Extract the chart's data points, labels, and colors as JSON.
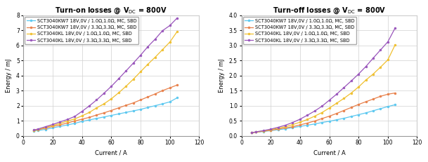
{
  "title_on": "Turn-on losses @ V$_\\mathrm{DC}$ = 800V",
  "title_off": "Turn-off losses @ V$_\\mathrm{DC}$ = 800V",
  "xlabel": "Current / A",
  "ylabel": "Energy / mJ",
  "xlim": [
    0,
    120
  ],
  "ylim_on": [
    0,
    8
  ],
  "ylim_off": [
    0,
    4
  ],
  "xticks": [
    0,
    20,
    40,
    60,
    80,
    100,
    120
  ],
  "yticks_on": [
    0,
    1,
    2,
    3,
    4,
    5,
    6,
    7,
    8
  ],
  "yticks_off": [
    0.0,
    0.5,
    1.0,
    1.5,
    2.0,
    2.5,
    3.0,
    3.5,
    4.0
  ],
  "current": [
    7,
    10,
    15,
    20,
    25,
    30,
    35,
    40,
    45,
    50,
    55,
    60,
    65,
    70,
    75,
    80,
    85,
    90,
    95,
    100,
    105
  ],
  "series": [
    {
      "label": "SCT3040KW7 18V,0V / 1.0Ω,1.0Ω, MC, SBD",
      "color": "#5bc8f0",
      "on": [
        0.32,
        0.35,
        0.42,
        0.52,
        0.62,
        0.72,
        0.82,
        0.95,
        1.05,
        1.15,
        1.25,
        1.35,
        1.45,
        1.55,
        1.65,
        1.75,
        1.88,
        2.0,
        2.12,
        2.25,
        2.52
      ],
      "off": [
        0.1,
        0.12,
        0.14,
        0.17,
        0.2,
        0.23,
        0.27,
        0.31,
        0.35,
        0.39,
        0.44,
        0.48,
        0.53,
        0.58,
        0.64,
        0.7,
        0.76,
        0.83,
        0.9,
        0.97,
        1.03
      ]
    },
    {
      "label": "SCT3040KW7 18V,0V / 3.3Ω,3.3Ω, MC, SBD",
      "color": "#e8804a",
      "on": [
        0.35,
        0.4,
        0.5,
        0.62,
        0.72,
        0.85,
        0.98,
        1.1,
        1.22,
        1.38,
        1.52,
        1.68,
        1.85,
        2.02,
        2.18,
        2.38,
        2.58,
        2.78,
        3.0,
        3.18,
        3.37
      ],
      "off": [
        0.1,
        0.12,
        0.15,
        0.18,
        0.22,
        0.26,
        0.3,
        0.36,
        0.42,
        0.49,
        0.57,
        0.65,
        0.74,
        0.84,
        0.94,
        1.04,
        1.13,
        1.22,
        1.31,
        1.38,
        1.42
      ]
    },
    {
      "label": "SCT3040KL 18V,0V / 1.0Ω,1.0Ω, MC, SBD",
      "color": "#f0c030",
      "on": [
        0.35,
        0.42,
        0.55,
        0.68,
        0.82,
        0.98,
        1.12,
        1.32,
        1.55,
        1.85,
        2.12,
        2.45,
        2.85,
        3.28,
        3.75,
        4.25,
        4.75,
        5.22,
        5.72,
        6.22,
        6.92
      ],
      "off": [
        0.1,
        0.12,
        0.16,
        0.2,
        0.25,
        0.3,
        0.37,
        0.45,
        0.54,
        0.65,
        0.77,
        0.92,
        1.08,
        1.24,
        1.42,
        1.62,
        1.85,
        2.05,
        2.28,
        2.52,
        3.02
      ]
    },
    {
      "label": "SCT3040KL 18V,0V / 3.3Ω,3.3Ω, MC, SBD",
      "color": "#9955bb",
      "on": [
        0.38,
        0.45,
        0.6,
        0.75,
        0.92,
        1.08,
        1.28,
        1.62,
        1.98,
        2.38,
        2.82,
        3.28,
        3.78,
        4.3,
        4.82,
        5.35,
        5.92,
        6.42,
        6.98,
        7.32,
        7.82
      ],
      "off": [
        0.1,
        0.13,
        0.17,
        0.22,
        0.28,
        0.35,
        0.44,
        0.55,
        0.68,
        0.82,
        0.98,
        1.18,
        1.38,
        1.6,
        1.82,
        2.05,
        2.3,
        2.58,
        2.85,
        3.12,
        3.58
      ]
    }
  ],
  "background_color": "#ffffff",
  "grid_color": "#d0d0d0",
  "legend_fontsize": 4.8,
  "title_fontsize": 7.0,
  "axis_fontsize": 6.0,
  "tick_fontsize": 5.5
}
